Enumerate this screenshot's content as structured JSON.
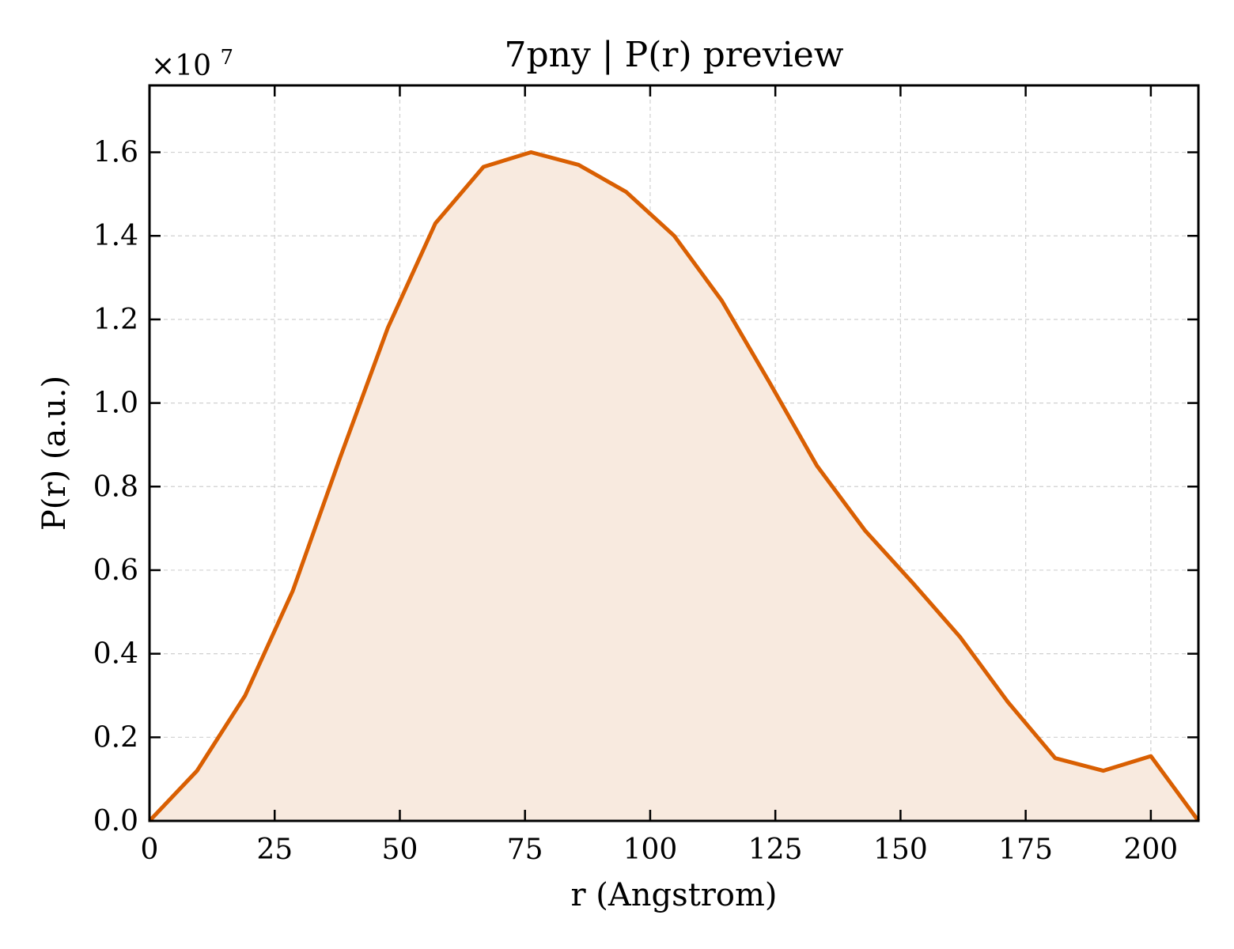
{
  "chart_data": {
    "type": "area",
    "title": "7pny | P(r) preview",
    "xlabel": "r (Angstrom)",
    "ylabel": "P(r) (a.u.)",
    "y_multiplier_label": "×10^7",
    "y_multiplier_base": "×10",
    "y_multiplier_exp": "7",
    "xlim": [
      0,
      209.5
    ],
    "ylim": [
      0,
      1.76
    ],
    "x_ticks": [
      0,
      25,
      50,
      75,
      100,
      125,
      150,
      175,
      200
    ],
    "x_tick_labels": [
      "0",
      "25",
      "50",
      "75",
      "100",
      "125",
      "150",
      "175",
      "200"
    ],
    "y_ticks": [
      0.0,
      0.2,
      0.4,
      0.6,
      0.8,
      1.0,
      1.2,
      1.4,
      1.6
    ],
    "y_tick_labels": [
      "0.0",
      "0.2",
      "0.4",
      "0.6",
      "0.8",
      "1.0",
      "1.2",
      "1.4",
      "1.6"
    ],
    "grid": true,
    "series": [
      {
        "x": [
          0,
          9.5,
          19.1,
          28.6,
          38.1,
          47.6,
          57.1,
          66.7,
          76.2,
          85.7,
          95.2,
          104.8,
          114.3,
          123.8,
          133.3,
          142.9,
          152.4,
          161.9,
          171.4,
          180.9,
          190.5,
          200.0,
          209.5
        ],
        "values": [
          0.0,
          0.12,
          0.3,
          0.55,
          0.87,
          1.18,
          1.43,
          1.565,
          1.6,
          1.57,
          1.505,
          1.4,
          1.245,
          1.05,
          0.85,
          0.695,
          0.57,
          0.44,
          0.285,
          0.15,
          0.12,
          0.155,
          0.0
        ]
      }
    ],
    "colors": {
      "line": "#d95f02",
      "fill": "#f8eadf"
    }
  }
}
